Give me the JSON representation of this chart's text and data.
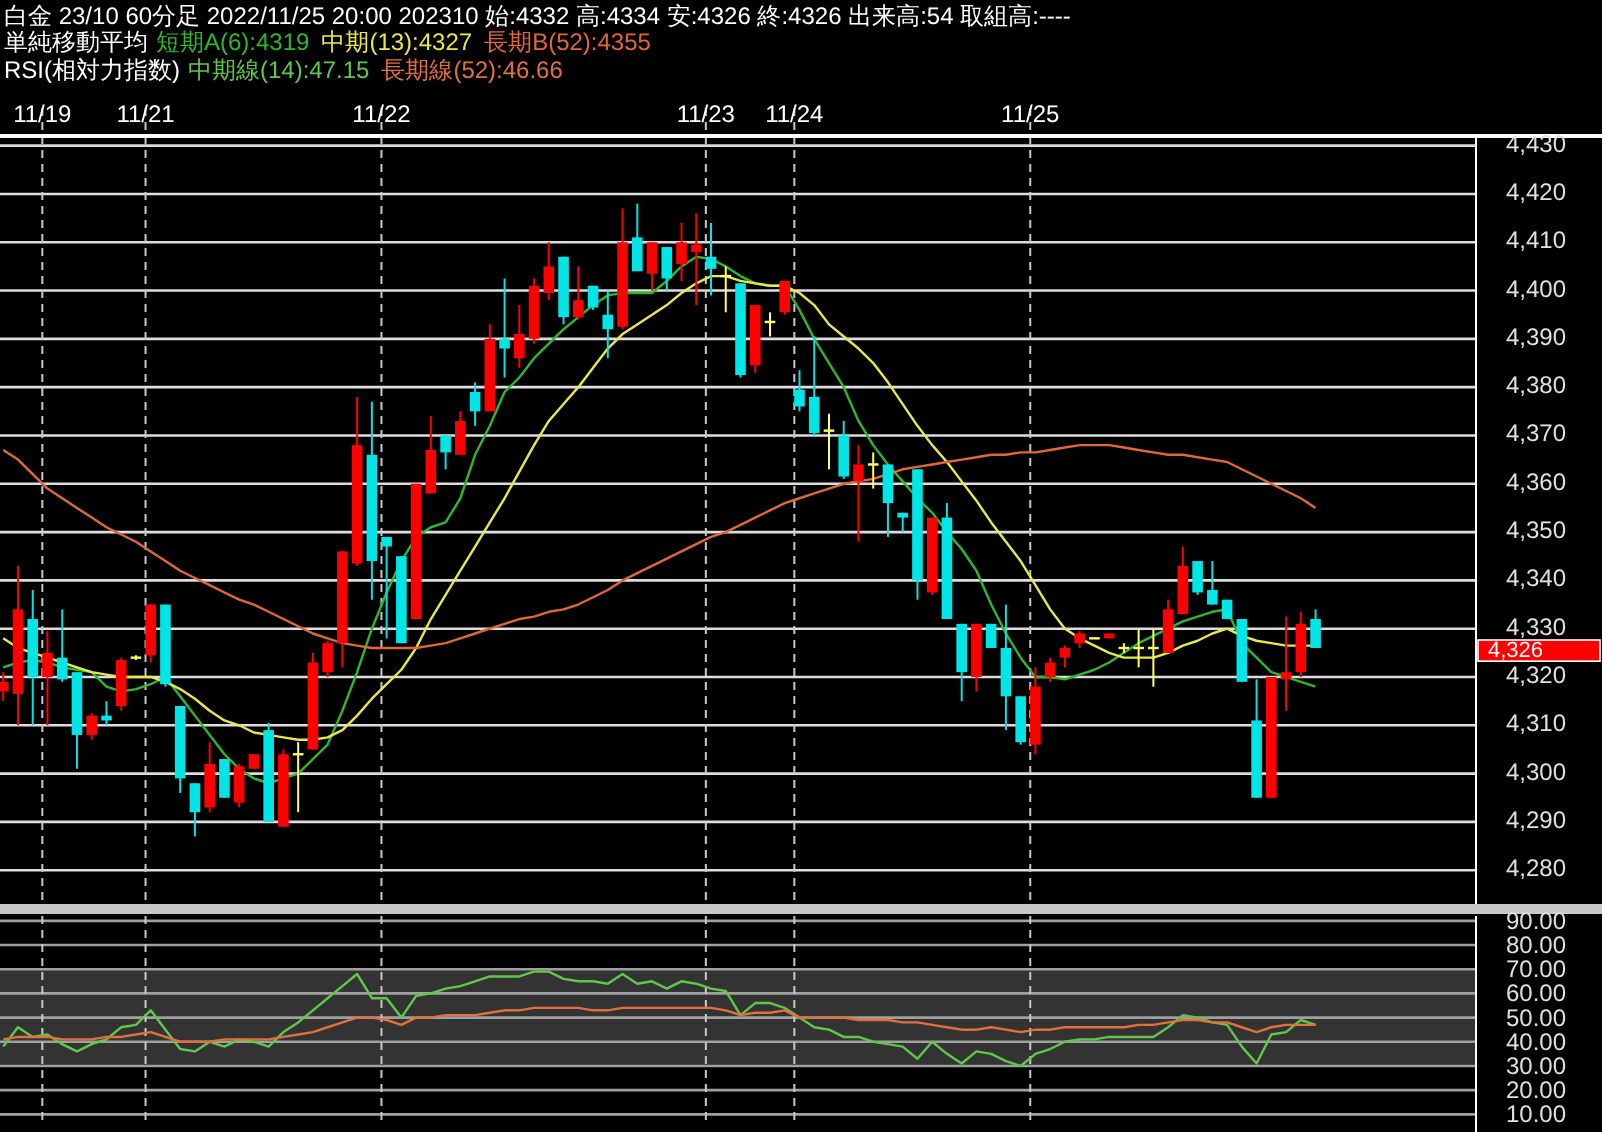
{
  "chart_data": [
    {
      "type": "candlestick",
      "title": "白金 23/10 60分足 2022/11/25 20:00 202310 始:4332 高:4334 安:4326 終:4326 出来高:54 取組高:----",
      "legend_title": "単純移動平均",
      "legend": "top left",
      "grid": true,
      "categories": [
        null,
        null,
        null,
        "11/19",
        null,
        null,
        null,
        null,
        null,
        null,
        "11/21",
        null,
        null,
        null,
        null,
        null,
        null,
        null,
        null,
        null,
        null,
        null,
        null,
        null,
        null,
        null,
        "11/22",
        null,
        null,
        null,
        null,
        null,
        null,
        null,
        null,
        null,
        null,
        null,
        null,
        null,
        null,
        null,
        null,
        null,
        null,
        null,
        null,
        null,
        "11/23",
        null,
        null,
        null,
        null,
        null,
        "11/24",
        null,
        null,
        null,
        null,
        null,
        null,
        null,
        null,
        null,
        null,
        null,
        null,
        null,
        null,
        null,
        "11/25",
        null,
        null,
        null,
        null,
        null,
        null,
        null,
        null,
        null,
        null,
        null,
        null,
        null,
        null,
        null,
        null,
        null,
        null,
        null
      ],
      "ohlc": [
        [
          4317,
          4321,
          4315,
          4319
        ],
        [
          4316.5,
          4343,
          4310,
          4334
        ],
        [
          4332,
          4338,
          4310,
          4320
        ],
        [
          4320,
          4329.5,
          4310,
          4325
        ],
        [
          4324,
          4334,
          4319,
          4319.5
        ],
        [
          4321,
          4321,
          4301,
          4308
        ],
        [
          4308,
          4312.5,
          4307,
          4312
        ],
        [
          4312,
          4315,
          4310,
          4311
        ],
        [
          4314,
          4324,
          4313,
          4323.5
        ],
        [
          4324,
          4324.5,
          4323.5,
          4324
        ],
        [
          4324.5,
          4335,
          4323,
          4335
        ],
        [
          4335,
          4335,
          4318,
          4318.5
        ],
        [
          4314,
          4314,
          4296,
          4299
        ],
        [
          4298,
          4298,
          4287,
          4292
        ],
        [
          4293,
          4306.5,
          4292,
          4302
        ],
        [
          4303,
          4303,
          4295,
          4295
        ],
        [
          4294,
          4302,
          4293,
          4301.5
        ],
        [
          4301,
          4304,
          4301,
          4304
        ],
        [
          4309,
          4310.5,
          4290,
          4290
        ],
        [
          4289,
          4305,
          4289,
          4304
        ],
        [
          4304,
          4306.5,
          4292,
          4304
        ],
        [
          4305,
          4325,
          4305,
          4323
        ],
        [
          4321,
          4327.5,
          4320,
          4327
        ],
        [
          4327,
          4346,
          4322,
          4346
        ],
        [
          4343.5,
          4378,
          4343,
          4368
        ],
        [
          4366,
          4377,
          4336,
          4344
        ],
        [
          4349,
          4349,
          4328,
          4347
        ],
        [
          4345,
          4345,
          4327,
          4327
        ],
        [
          4332,
          4360,
          4332,
          4360
        ],
        [
          4358,
          4374,
          4358,
          4367
        ],
        [
          4370,
          4370,
          4363,
          4366.5
        ],
        [
          4366,
          4375,
          4366,
          4373
        ],
        [
          4379,
          4381,
          4372,
          4375
        ],
        [
          4375,
          4393,
          4375,
          4390
        ],
        [
          4390,
          4402.5,
          4382,
          4388
        ],
        [
          4386,
          4397,
          4384,
          4391
        ],
        [
          4390,
          4402.5,
          4389,
          4401
        ],
        [
          4399.5,
          4410,
          4398,
          4405
        ],
        [
          4407,
          4407,
          4393,
          4394.5
        ],
        [
          4394.5,
          4405,
          4394,
          4398
        ],
        [
          4401,
          4401,
          4396,
          4396.5
        ],
        [
          4395,
          4400,
          4386,
          4392
        ],
        [
          4392.5,
          4417,
          4392,
          4410
        ],
        [
          4411,
          4418,
          4404,
          4404
        ],
        [
          4403.5,
          4410,
          4400,
          4410
        ],
        [
          4409,
          4409,
          4400,
          4402.5
        ],
        [
          4405.5,
          4414,
          4402,
          4410
        ],
        [
          4408,
          4416,
          4397,
          4409.5
        ],
        [
          4407,
          4414,
          4399,
          4404.5
        ],
        [
          4403,
          4405,
          4395.5,
          4403
        ],
        [
          4401.5,
          4401.5,
          4382,
          4382.5
        ],
        [
          4384.5,
          4397,
          4383,
          4397
        ],
        [
          4393.5,
          4395.5,
          4390.5,
          4393.5
        ],
        [
          4395.5,
          4402,
          4395,
          4402
        ],
        [
          4379.5,
          4383.5,
          4375,
          4376
        ],
        [
          4378,
          4390.5,
          4370,
          4370.5
        ],
        [
          4371,
          4374.5,
          4363,
          4371
        ],
        [
          4370,
          4373,
          4361,
          4361.5
        ],
        [
          4360.5,
          4368,
          4348,
          4364
        ],
        [
          4364,
          4366.5,
          4359,
          4364
        ],
        [
          4364,
          4364,
          4349,
          4356
        ],
        [
          4354,
          4354,
          4350,
          4353
        ],
        [
          4363,
          4363,
          4336,
          4340
        ],
        [
          4337.5,
          4353,
          4337,
          4353
        ],
        [
          4353,
          4356,
          4332,
          4332
        ],
        [
          4331,
          4331,
          4315,
          4321
        ],
        [
          4320,
          4331,
          4317,
          4331
        ],
        [
          4331,
          4331,
          4326,
          4326
        ],
        [
          4326,
          4335,
          4309,
          4316
        ],
        [
          4316,
          4316,
          4306,
          4306.5
        ],
        [
          4306,
          4322,
          4304,
          4318
        ],
        [
          4320,
          4324,
          4319,
          4323
        ],
        [
          4324,
          4326.5,
          4322,
          4326
        ],
        [
          4327,
          4329.5,
          4326,
          4329
        ],
        [
          4328,
          4328,
          4328,
          4328
        ],
        [
          4328,
          4329,
          4328,
          4329
        ],
        [
          4326,
          4327,
          4325,
          4326
        ],
        [
          4326,
          4330,
          4322,
          4326
        ],
        [
          4326,
          4330,
          4318,
          4326
        ],
        [
          4325,
          4336,
          4325,
          4334
        ],
        [
          4333,
          4347,
          4333,
          4343
        ],
        [
          4344,
          4344,
          4337,
          4337.5
        ],
        [
          4338,
          4344,
          4335,
          4335
        ],
        [
          4336,
          4336,
          4332,
          4332
        ],
        [
          4332,
          4332,
          4319,
          4319
        ],
        [
          4311,
          4319.5,
          4295,
          4295
        ],
        [
          4295,
          4320,
          4295,
          4320
        ],
        [
          4319.5,
          4332.5,
          4313,
          4321
        ],
        [
          4321,
          4333.5,
          4320,
          4331
        ],
        [
          4332,
          4334,
          4326,
          4326
        ]
      ],
      "colors": [
        "#ff0000",
        "#ff0000",
        "#00e5e5",
        "#ff0000",
        "#00e5e5",
        "#00e5e5",
        "#ff0000",
        "#00e5e5",
        "#ff0000",
        "#ffff66",
        "#ff0000",
        "#00e5e5",
        "#00e5e5",
        "#00e5e5",
        "#ff0000",
        "#00e5e5",
        "#ff0000",
        "#ff0000",
        "#00e5e5",
        "#ff0000",
        "#ffff66",
        "#ff0000",
        "#ff0000",
        "#ff0000",
        "#ff0000",
        "#00e5e5",
        "#00e5e5",
        "#00e5e5",
        "#ff0000",
        "#ff0000",
        "#00e5e5",
        "#ff0000",
        "#00e5e5",
        "#ff0000",
        "#00e5e5",
        "#ff0000",
        "#ff0000",
        "#ff0000",
        "#00e5e5",
        "#ff0000",
        "#00e5e5",
        "#00e5e5",
        "#ff0000",
        "#00e5e5",
        "#ff0000",
        "#00e5e5",
        "#ff0000",
        "#ff0000",
        "#00e5e5",
        "#ffff66",
        "#00e5e5",
        "#ff0000",
        "#ffff66",
        "#ff0000",
        "#00e5e5",
        "#00e5e5",
        "#ffff66",
        "#00e5e5",
        "#ff0000",
        "#ffff66",
        "#00e5e5",
        "#00e5e5",
        "#00e5e5",
        "#ff0000",
        "#00e5e5",
        "#00e5e5",
        "#ff0000",
        "#00e5e5",
        "#00e5e5",
        "#00e5e5",
        "#ff0000",
        "#ff0000",
        "#ff0000",
        "#ff0000",
        "#ffff66",
        "#ff0000",
        "#ffff66",
        "#ffff66",
        "#ffff66",
        "#ff0000",
        "#ff0000",
        "#00e5e5",
        "#00e5e5",
        "#00e5e5",
        "#00e5e5",
        "#00e5e5",
        "#ff0000",
        "#ff0000",
        "#ff0000",
        "#00e5e5"
      ],
      "series": [
        {
          "type": "line",
          "name": "短期A(6):4319",
          "color": "#2db82d",
          "values": [
            4322,
            4323,
            4323.5,
            4323,
            4322,
            4321.5,
            4321,
            4318,
            4317,
            4317.5,
            4318.5,
            4320,
            4316,
            4312,
            4308,
            4304,
            4301,
            4299,
            4298,
            4299,
            4300,
            4303,
            4306,
            4313,
            4321,
            4330,
            4337.5,
            4344,
            4349,
            4351,
            4352,
            4357,
            4366,
            4372,
            4379,
            4382,
            4386,
            4389,
            4392,
            4394.5,
            4397,
            4399,
            4399.5,
            4399.5,
            4399.5,
            4402,
            4405,
            4407,
            4406.5,
            4405,
            4403,
            4401.5,
            4401,
            4401,
            4396,
            4390,
            4385,
            4380,
            4373,
            4368,
            4364,
            4360.5,
            4357,
            4354,
            4350,
            4346.5,
            4342,
            4335,
            4329,
            4324,
            4320,
            4320,
            4319.5,
            4320.5,
            4321.5,
            4323,
            4325,
            4327,
            4328.5,
            4330,
            4331.5,
            4332.5,
            4333.5,
            4334,
            4327,
            4324,
            4321,
            4320,
            4319,
            4318
          ]
        },
        {
          "type": "line",
          "name": "中期(13):4327",
          "color": "#e8e84a",
          "values": [
            4328,
            4326,
            4325,
            4324,
            4323,
            4322,
            4321,
            4320.5,
            4320,
            4320,
            4320,
            4319,
            4317.5,
            4315.5,
            4313,
            4311,
            4310,
            4308.5,
            4308,
            4307.5,
            4307,
            4307,
            4307.5,
            4309,
            4312,
            4315.5,
            4318.5,
            4321.5,
            4326,
            4332,
            4337,
            4342,
            4347,
            4352,
            4357,
            4362.5,
            4368,
            4373,
            4376.5,
            4380,
            4384,
            4388,
            4391,
            4393,
            4395,
            4397,
            4399.5,
            4401.5,
            4403,
            4403,
            4402,
            4401.5,
            4401,
            4401,
            4399.5,
            4397,
            4393,
            4390.5,
            4388,
            4385,
            4381,
            4376.5,
            4372,
            4368,
            4364.5,
            4360.5,
            4356.5,
            4352,
            4348,
            4344,
            4339,
            4334,
            4330,
            4328,
            4326.5,
            4325,
            4324,
            4324,
            4324,
            4325,
            4326.5,
            4327.5,
            4329,
            4330,
            4328.5,
            4327.5,
            4327,
            4326.5,
            4326.5,
            4326.5
          ]
        },
        {
          "type": "line",
          "name": "長期B(52):4355",
          "color": "#e0673a",
          "values": [
            4367,
            4365,
            4362,
            4359,
            4357,
            4355,
            4353,
            4351,
            4349.5,
            4348,
            4346,
            4344,
            4342,
            4340.5,
            4339,
            4337.5,
            4336,
            4335,
            4333.5,
            4332,
            4330.5,
            4329,
            4328,
            4327,
            4326.5,
            4326,
            4326,
            4326,
            4326,
            4326.5,
            4327,
            4328,
            4329,
            4330,
            4331,
            4332,
            4332.5,
            4333.5,
            4334,
            4335,
            4336.5,
            4338,
            4340,
            4341.5,
            4343,
            4344.5,
            4346,
            4347.5,
            4349,
            4350,
            4351.5,
            4353,
            4354.5,
            4356,
            4357,
            4358,
            4359,
            4360,
            4360.5,
            4361,
            4362,
            4363,
            4363.5,
            4364,
            4364.5,
            4365,
            4365.5,
            4366,
            4366,
            4366.5,
            4366.5,
            4367,
            4367.5,
            4368,
            4368,
            4368,
            4367.5,
            4367,
            4366.5,
            4366,
            4366,
            4365.5,
            4365,
            4364.5,
            4363,
            4361.5,
            4360,
            4358.5,
            4357,
            4355
          ]
        }
      ],
      "ylim": [
        4273,
        4432
      ],
      "yticks": [
        {
          "value": 4280,
          "label": "4,280"
        },
        {
          "value": 4290,
          "label": "4,290"
        },
        {
          "value": 4300,
          "label": "4,300"
        },
        {
          "value": 4310,
          "label": "4,310"
        },
        {
          "value": 4320,
          "label": "4,320"
        },
        {
          "value": 4330,
          "label": "4,330"
        },
        {
          "value": 4340,
          "label": "4,340"
        },
        {
          "value": 4350,
          "label": "4,350"
        },
        {
          "value": 4360,
          "label": "4,360"
        },
        {
          "value": 4370,
          "label": "4,370"
        },
        {
          "value": 4380,
          "label": "4,380"
        },
        {
          "value": 4390,
          "label": "4,390"
        },
        {
          "value": 4400,
          "label": "4,400"
        },
        {
          "value": 4410,
          "label": "4,410"
        },
        {
          "value": 4420,
          "label": "4,420"
        },
        {
          "value": 4430,
          "label": "4,430"
        }
      ],
      "annotations": [
        "4,326"
      ]
    },
    {
      "type": "line",
      "legend_title": "RSI(相対力指数)",
      "legend": "top left",
      "grid": true,
      "tick_labels": "y",
      "categories": [
        null,
        null,
        null,
        null,
        null,
        null,
        null,
        null,
        null,
        null,
        null,
        null,
        null,
        null,
        null,
        null,
        null,
        null,
        null,
        null,
        null,
        null,
        null,
        null,
        null,
        null,
        null,
        null,
        null,
        null,
        null,
        null,
        null,
        null,
        null,
        null,
        null,
        null,
        null,
        null,
        null,
        null,
        null,
        null,
        null,
        null,
        null,
        null,
        null,
        null,
        null,
        null,
        null,
        null,
        null,
        null,
        null,
        null,
        null,
        null,
        null,
        null,
        null,
        null,
        null,
        null,
        null,
        null,
        null,
        null,
        null,
        null,
        null,
        null,
        null,
        null,
        null,
        null,
        null,
        null,
        null,
        null,
        null,
        null,
        null,
        null,
        null,
        null,
        null,
        null
      ],
      "series": [
        {
          "name": "中期線(14):47.15",
          "color": "#5fc84a",
          "values": [
            38,
            46,
            42,
            43,
            39,
            36,
            39,
            41,
            46,
            47,
            53,
            45,
            37,
            36,
            40,
            38,
            41,
            40,
            38,
            44,
            48,
            53,
            58,
            63,
            68,
            58,
            58,
            50,
            59,
            60,
            62,
            63,
            65,
            67,
            67,
            67,
            69,
            69,
            66,
            65,
            65,
            64,
            68,
            64,
            65,
            62,
            65,
            64,
            62,
            61,
            51,
            56,
            56,
            54,
            50,
            46,
            45,
            42,
            42,
            40,
            39,
            38,
            33,
            40,
            35,
            31,
            36,
            35,
            32,
            30,
            35,
            37,
            40,
            41,
            41,
            42,
            42,
            42,
            42,
            46,
            51,
            50,
            48,
            47,
            38,
            31,
            43,
            44,
            49,
            47
          ]
        },
        {
          "name": "長期線(52):46.66",
          "color": "#e0703e",
          "values": [
            41,
            42,
            42,
            42,
            41,
            41,
            41,
            42,
            42,
            43,
            44,
            42,
            40,
            40,
            40,
            41,
            41,
            41,
            41,
            42,
            43,
            44,
            46,
            48,
            50,
            50,
            49,
            47,
            50,
            50,
            51,
            51,
            51,
            52,
            53,
            53,
            54,
            54,
            54,
            54,
            53,
            53,
            54,
            54,
            54,
            54,
            54,
            54,
            54,
            53,
            51,
            52,
            52,
            53,
            50,
            50,
            50,
            50,
            49,
            49,
            49,
            48,
            48,
            47,
            46,
            45,
            45,
            46,
            45,
            44,
            45,
            45,
            46,
            46,
            46,
            46,
            46,
            47,
            47,
            48,
            49,
            49,
            48,
            48,
            46,
            44,
            46,
            47,
            47,
            47
          ]
        }
      ],
      "ylim": [
        6,
        92
      ],
      "yticks": [
        {
          "value": 10,
          "label": "10.00"
        },
        {
          "value": 20,
          "label": "20.00"
        },
        {
          "value": 30,
          "label": "30.00"
        },
        {
          "value": 40,
          "label": "40.00"
        },
        {
          "value": 50,
          "label": "50.00"
        },
        {
          "value": 60,
          "label": "60.00"
        },
        {
          "value": 70,
          "label": "70.00"
        },
        {
          "value": 80,
          "label": "80.00"
        },
        {
          "value": 90,
          "label": "90.00"
        }
      ],
      "bands": [
        {
          "axis": "y",
          "from": 30,
          "to": 70,
          "color": "#333333"
        }
      ]
    }
  ]
}
